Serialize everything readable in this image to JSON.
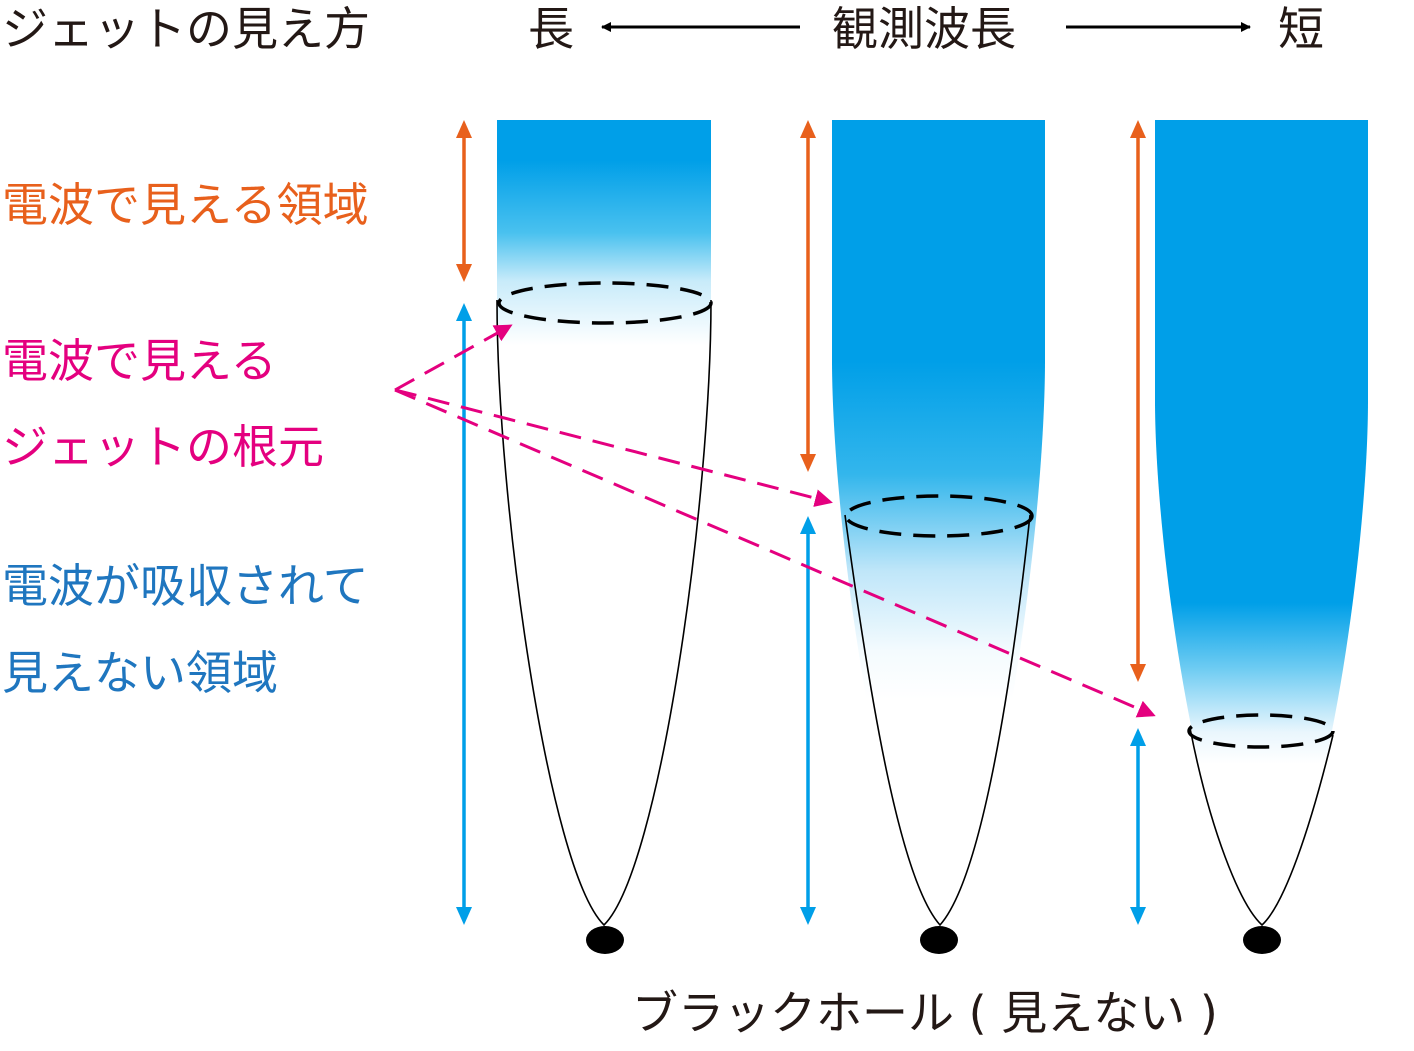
{
  "title": "ジェットの見え方",
  "wavelength_axis": {
    "long": "長",
    "label": "観測波長",
    "short": "短"
  },
  "legend": {
    "radio_visible_region": "電波で見える領域",
    "radio_visible_base_line1": "電波で見える",
    "radio_visible_base_line2": "ジェットの根元",
    "absorbed_region_line1": "電波が吸収されて",
    "absorbed_region_line2": "見えない領域"
  },
  "caption": "ブラックホール ( 見えない )",
  "colors": {
    "jet_blue": "#009fe8",
    "visible_arrow": "#e8601c",
    "base_pointer": "#e4007f",
    "absorbed_arrow": "#009fe8",
    "outline": "#000000"
  }
}
